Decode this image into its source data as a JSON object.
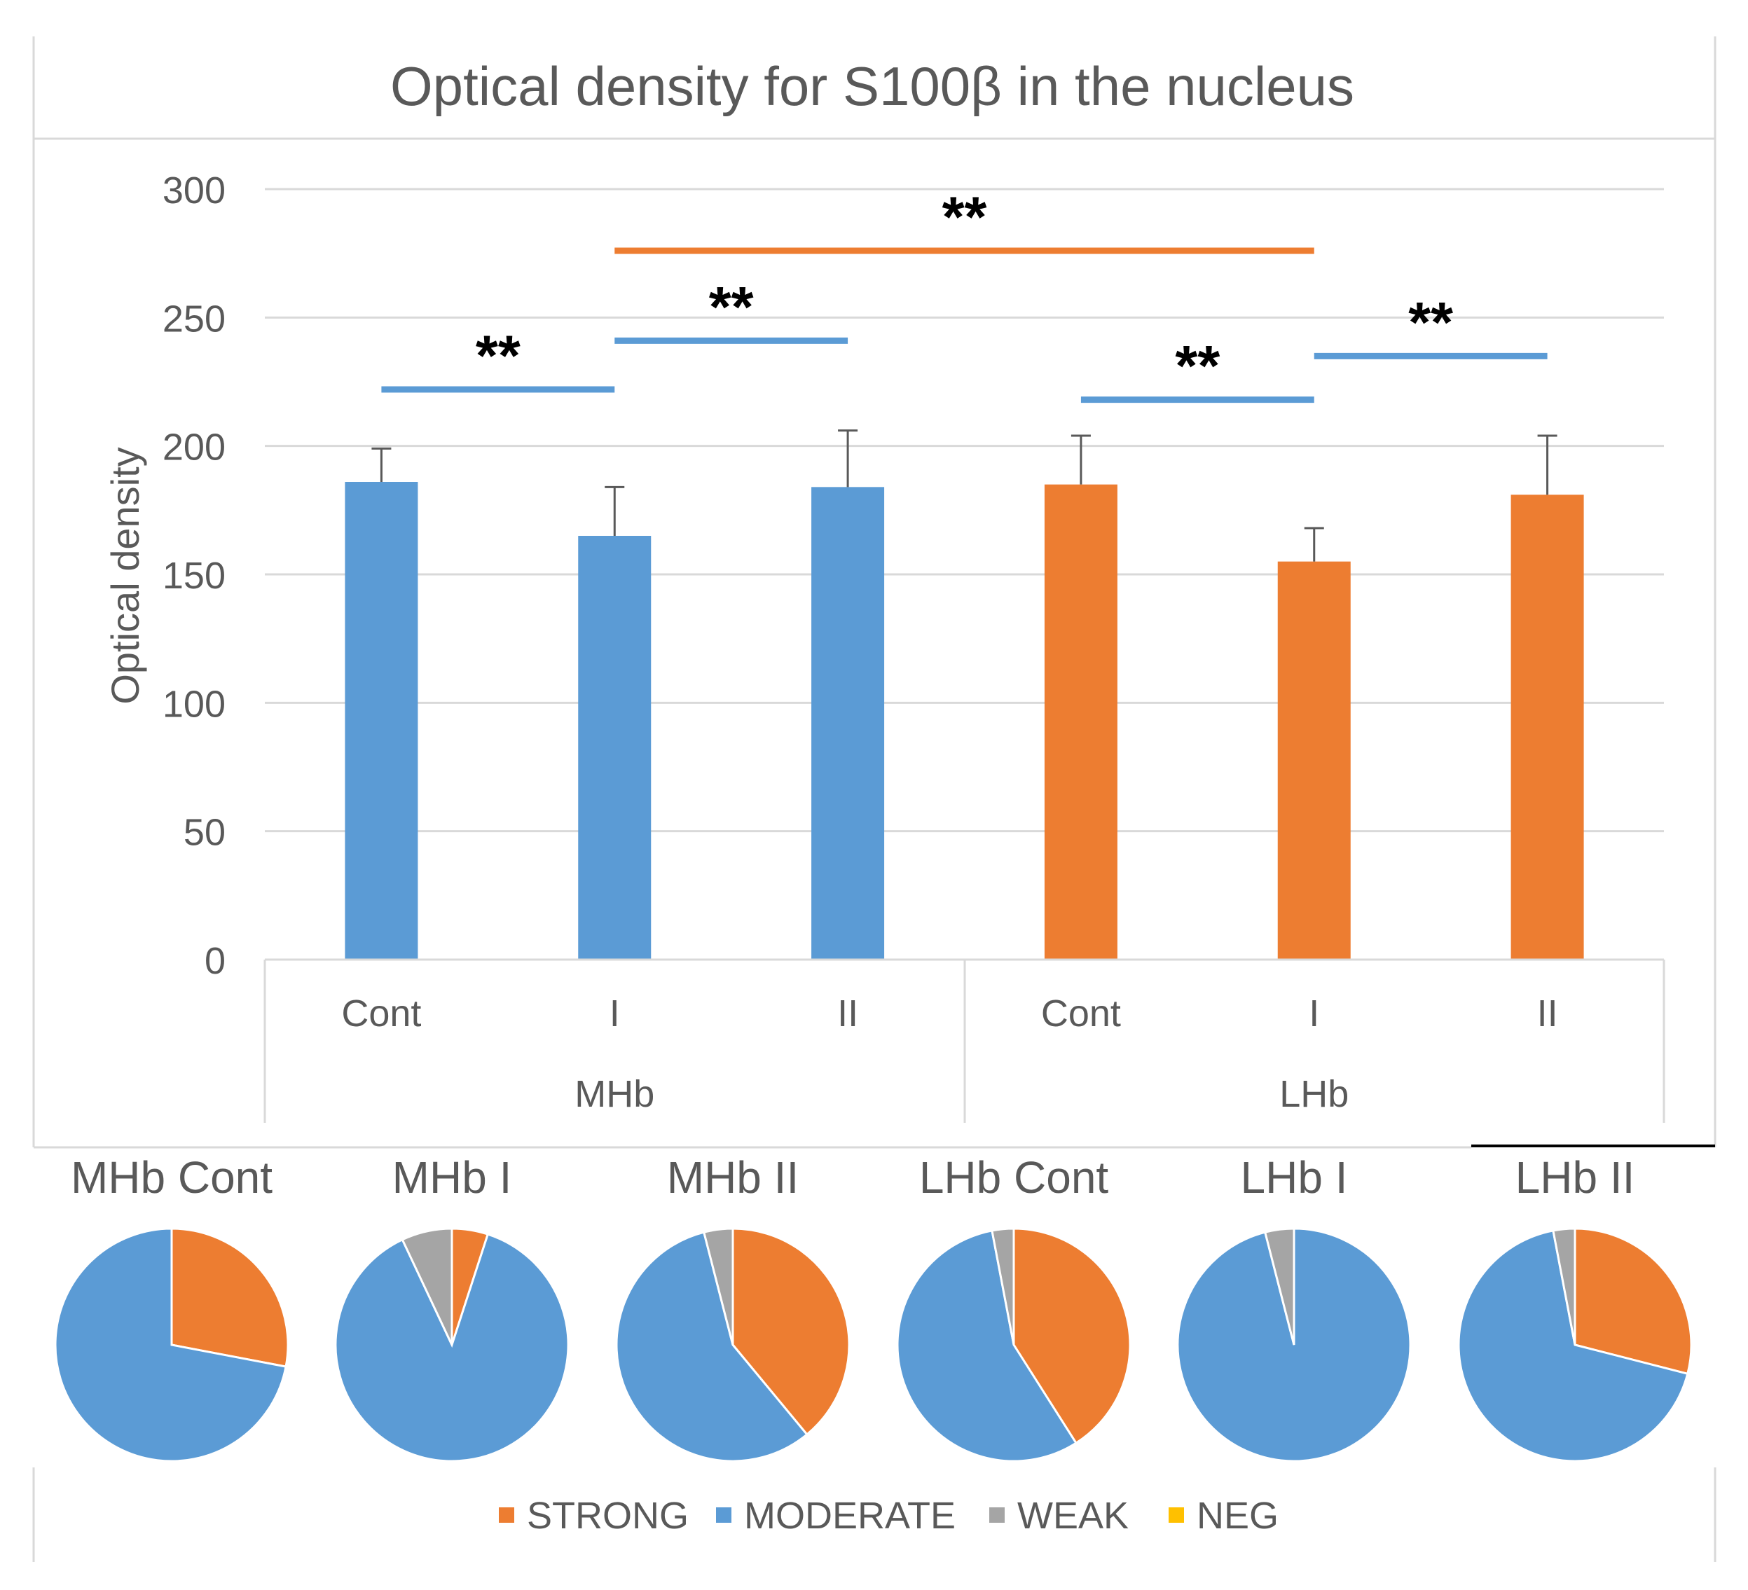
{
  "colors": {
    "moderate": "#5b9bd5",
    "strong": "#ed7d31",
    "weak": "#a5a5a5",
    "neg": "#ffc000",
    "gridline": "#d9d9d9",
    "axis_text": "#595959",
    "frame": "#d9d9d9"
  },
  "chart_data": [
    {
      "type": "bar",
      "title": "Optical density for S100β in the nucleus",
      "ylabel": "Optical density",
      "xlabel": "",
      "ylim": [
        0,
        300
      ],
      "yticks": [
        0,
        50,
        100,
        150,
        200,
        250,
        300
      ],
      "grid": true,
      "groups": [
        {
          "label": "MHb",
          "categories": [
            "Cont",
            "I",
            "II"
          ],
          "values": [
            186,
            165,
            184
          ],
          "errors": [
            13,
            19,
            22
          ],
          "color": "#5b9bd5"
        },
        {
          "label": "LHb",
          "categories": [
            "Cont",
            "I",
            "II"
          ],
          "values": [
            185,
            155,
            181
          ],
          "errors": [
            19,
            13,
            23
          ],
          "color": "#ed7d31"
        }
      ],
      "significance": [
        {
          "from": 0,
          "to": 1,
          "y": 222,
          "label": "**",
          "color": "#5b9bd5"
        },
        {
          "from": 1,
          "to": 2,
          "y": 241,
          "label": "**",
          "color": "#5b9bd5"
        },
        {
          "from": 3,
          "to": 4,
          "y": 218,
          "label": "**",
          "color": "#5b9bd5"
        },
        {
          "from": 4,
          "to": 5,
          "y": 235,
          "label": "**",
          "color": "#5b9bd5"
        },
        {
          "from": 1,
          "to": 4,
          "y": 276,
          "label": "**",
          "color": "#ed7d31"
        }
      ]
    },
    {
      "type": "pie",
      "legend": [
        "STRONG",
        "MODERATE",
        "WEAK",
        "NEG"
      ],
      "legend_position": "bottom",
      "pies": [
        {
          "title": "MHb Cont",
          "values": [
            28,
            72,
            0,
            0
          ]
        },
        {
          "title": "MHb I",
          "values": [
            5,
            88,
            7,
            0
          ]
        },
        {
          "title": "MHb II",
          "values": [
            39,
            57,
            4,
            0
          ]
        },
        {
          "title": "LHb Cont",
          "values": [
            41,
            56,
            3,
            0
          ]
        },
        {
          "title": "LHb I",
          "values": [
            0,
            96,
            4,
            0
          ]
        },
        {
          "title": "LHb II",
          "values": [
            29,
            68,
            3,
            0
          ]
        }
      ]
    }
  ]
}
